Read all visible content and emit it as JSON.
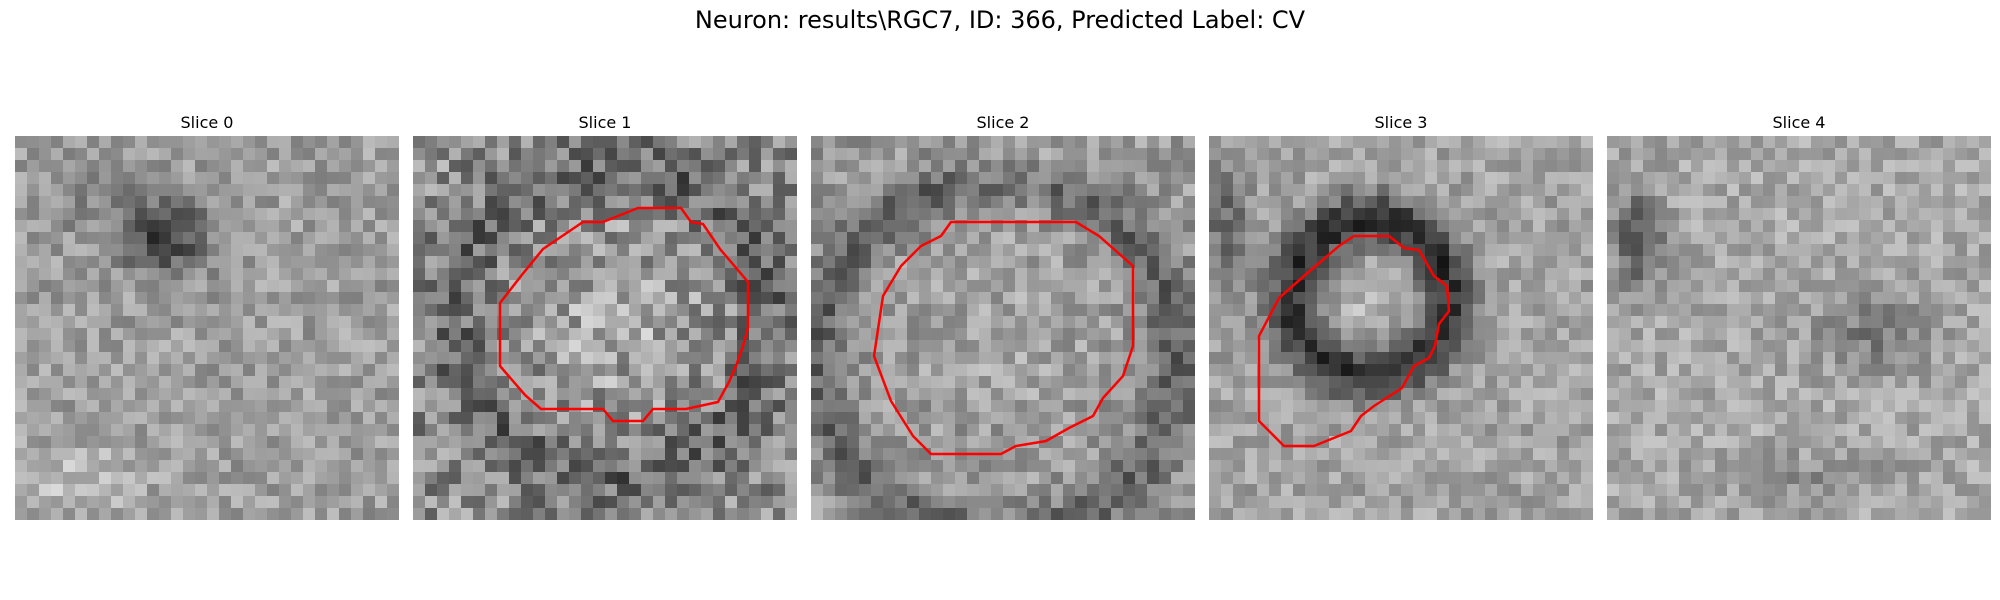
{
  "figure": {
    "title": "Neuron: results\\RGC7, ID: 366, Predicted Label: CV",
    "outline_color": "#ff0000",
    "colormap": "gray"
  },
  "panels": [
    {
      "label": "Slice 0",
      "has_outline": false
    },
    {
      "label": "Slice 1",
      "has_outline": true
    },
    {
      "label": "Slice 2",
      "has_outline": true
    },
    {
      "label": "Slice 3",
      "has_outline": true
    },
    {
      "label": "Slice 4",
      "has_outline": false
    }
  ]
}
